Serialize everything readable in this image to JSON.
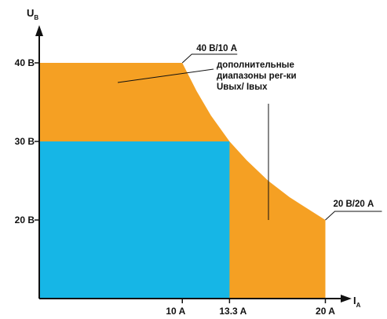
{
  "chart_data": {
    "type": "area",
    "xlabel": "IA",
    "ylabel": "UB",
    "xlim": [
      0,
      21.4
    ],
    "ylim": [
      10,
      45
    ],
    "x_ticks": [
      {
        "value": 10,
        "label": "10 A"
      },
      {
        "value": 13.3,
        "label": "13.3 A"
      },
      {
        "value": 20,
        "label": "20 A"
      }
    ],
    "y_ticks": [
      {
        "value": 40,
        "label": "40 В"
      },
      {
        "value": 30,
        "label": "30 В"
      },
      {
        "value": 20,
        "label": "20 В"
      }
    ],
    "regions": [
      {
        "name": "extended",
        "color": "#F5A023",
        "boundary": [
          [
            0,
            40
          ],
          [
            10,
            40
          ],
          [
            11,
            36.4
          ],
          [
            12,
            33.3
          ],
          [
            13.3,
            30
          ],
          [
            14.5,
            27.6
          ],
          [
            16,
            25
          ],
          [
            17.5,
            22.9
          ],
          [
            20,
            20
          ],
          [
            20,
            10
          ],
          [
            0,
            10
          ]
        ]
      },
      {
        "name": "base",
        "color": "#16B6E6",
        "boundary": [
          [
            0,
            10
          ],
          [
            0,
            30
          ],
          [
            13.3,
            30
          ],
          [
            13.3,
            10
          ]
        ]
      }
    ],
    "annotations": [
      {
        "label": "40 В/10 А",
        "at": [
          10,
          40
        ]
      },
      {
        "label": "20 В/20 А",
        "at": [
          20,
          20
        ]
      },
      {
        "label": [
          "дополнительные",
          "диапазоны рег-ки",
          "Uвых/ Iвых"
        ]
      }
    ]
  }
}
